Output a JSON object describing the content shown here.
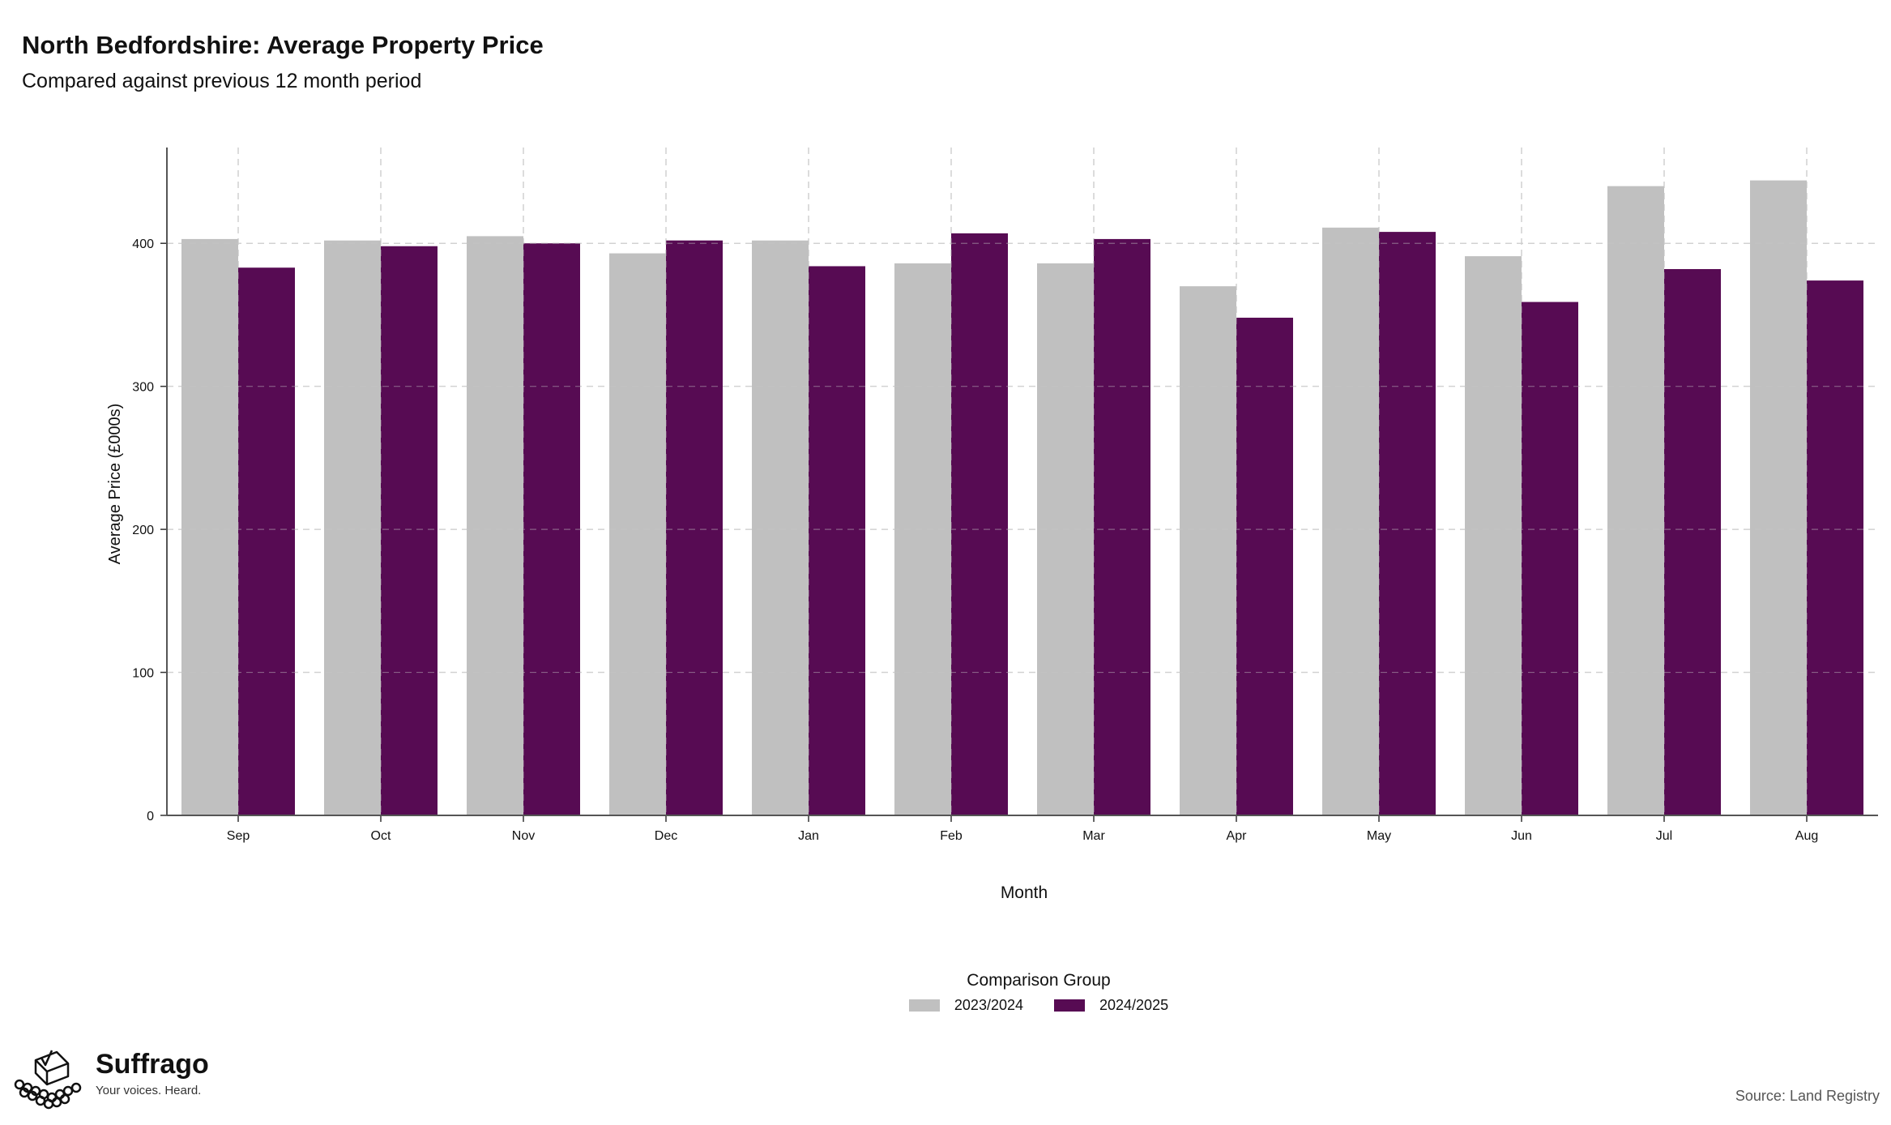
{
  "title": "North Bedfordshire: Average Property Price",
  "subtitle": "Compared against previous 12 month period",
  "chart_data": {
    "type": "bar",
    "categories": [
      "Sep",
      "Oct",
      "Nov",
      "Dec",
      "Jan",
      "Feb",
      "Mar",
      "Apr",
      "May",
      "Jun",
      "Jul",
      "Aug"
    ],
    "series": [
      {
        "name": "2023/2024",
        "color": "#c0c0c0",
        "values": [
          403,
          402,
          405,
          393,
          402,
          386,
          386,
          370,
          411,
          391,
          440,
          444
        ]
      },
      {
        "name": "2024/2025",
        "color": "#570b53",
        "values": [
          383,
          398,
          400,
          402,
          384,
          407,
          403,
          348,
          408,
          359,
          382,
          374
        ]
      }
    ],
    "xlabel": "Month",
    "ylabel": "Average Price (£000s)",
    "ylim": [
      0,
      467
    ],
    "yticks": [
      0,
      100,
      200,
      300,
      400
    ],
    "grid": true,
    "legend_title": "Comparison Group",
    "legend_position": "bottom"
  },
  "branding": {
    "name": "Suffrago",
    "tagline": "Your voices. Heard."
  },
  "source": "Source: Land Registry"
}
